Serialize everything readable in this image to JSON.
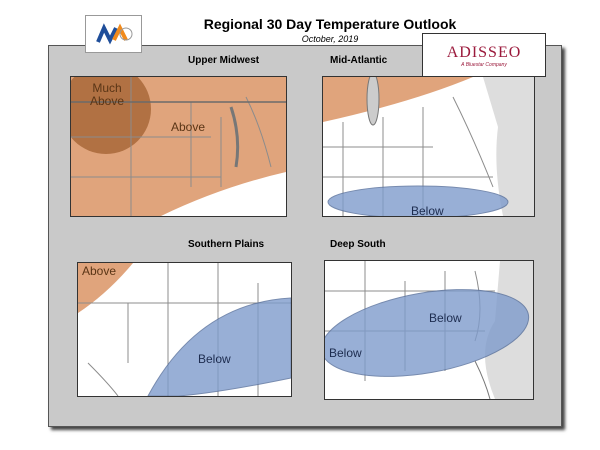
{
  "header": {
    "title": "Regional 30 Day Temperature Outlook",
    "subtitle": "October, 2019"
  },
  "logo": {
    "name": "ADISSEO",
    "tagline": "A Bluestar Company"
  },
  "panels": [
    {
      "title": "Upper Midwest",
      "labels": [
        "Much Above",
        "Above"
      ]
    },
    {
      "title": "Mid-Atlantic",
      "labels": [
        "Below"
      ]
    },
    {
      "title": "Southern Plains",
      "labels": [
        "Above",
        "Below"
      ]
    },
    {
      "title": "Deep South",
      "labels": [
        "Below",
        "Below"
      ]
    }
  ]
}
